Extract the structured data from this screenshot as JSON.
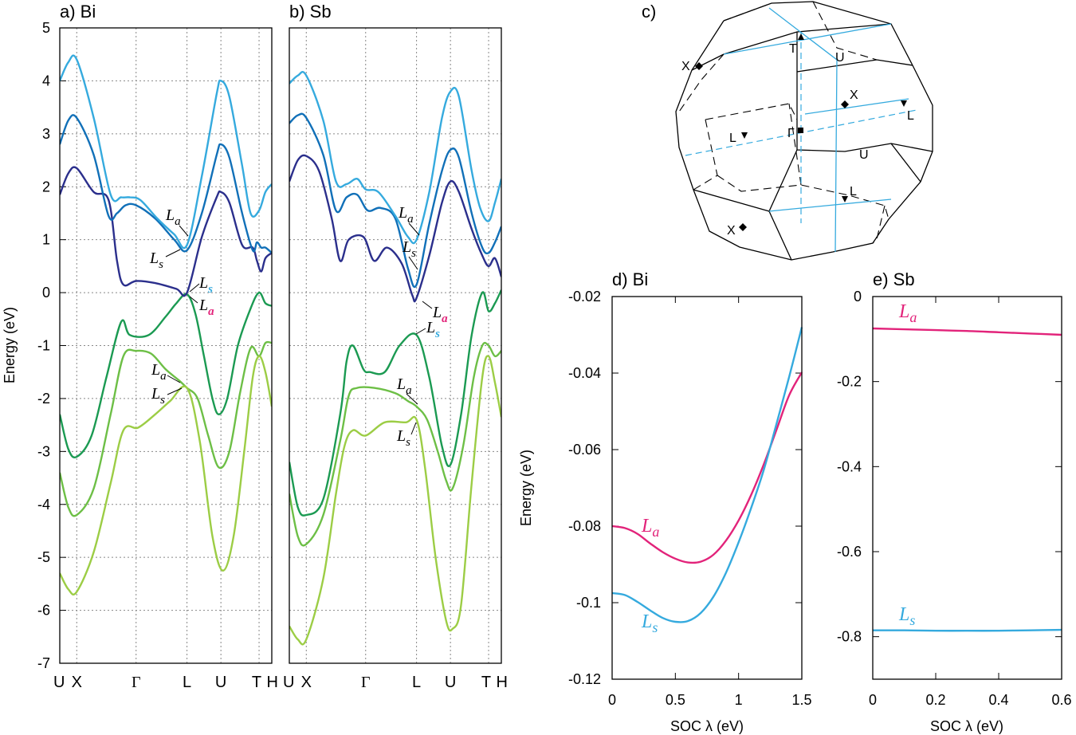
{
  "colors": {
    "band1": "#1b9a52",
    "band2": "#6dbf46",
    "band3": "#9ccd45",
    "band4": "#2b2f8c",
    "band5": "#1170b8",
    "band6": "#35aade",
    "La": "#e2237a",
    "Ls": "#35aade"
  },
  "chart_data": [
    {
      "panel": "a",
      "title": "a) Bi",
      "type": "line",
      "ylabel": "Energy (eV)",
      "ylim": [
        -7,
        5
      ],
      "yticks": [
        "5",
        "4",
        "3",
        "2",
        "1",
        "0",
        "-1",
        "-2",
        "-3",
        "-4",
        "-5",
        "-6",
        "-7"
      ],
      "kpoints": [
        "U",
        "X",
        "Γ",
        "L",
        "U",
        "T",
        "H"
      ],
      "k": [
        0.0,
        0.08,
        0.36,
        0.6,
        0.76,
        0.94,
        1.0
      ],
      "series": [
        {
          "name": "band1",
          "x": [
            0,
            0.04,
            0.08,
            0.15,
            0.22,
            0.29,
            0.33,
            0.42,
            0.5,
            0.55,
            0.6,
            0.64,
            0.68,
            0.72,
            0.75,
            0.79,
            0.84,
            0.9,
            0.94,
            0.97,
            1.0
          ],
          "y": [
            -2.3,
            -2.95,
            -3.1,
            -2.7,
            -1.6,
            -0.55,
            -0.8,
            -0.8,
            -0.45,
            -0.2,
            -0.03,
            -0.4,
            -1.2,
            -2.0,
            -2.3,
            -2.0,
            -1.0,
            -0.3,
            0.0,
            -0.2,
            -0.25
          ]
        },
        {
          "name": "band2",
          "x": [
            0,
            0.04,
            0.08,
            0.16,
            0.24,
            0.3,
            0.36,
            0.43,
            0.5,
            0.56,
            0.6,
            0.65,
            0.7,
            0.75,
            0.8,
            0.85,
            0.9,
            0.94,
            0.97,
            1.0
          ],
          "y": [
            -3.4,
            -4.05,
            -4.2,
            -3.7,
            -2.3,
            -1.2,
            -1.1,
            -1.15,
            -1.45,
            -1.65,
            -1.8,
            -2.0,
            -2.7,
            -3.3,
            -3.0,
            -1.9,
            -1.05,
            -1.2,
            -0.95,
            -0.95
          ]
        },
        {
          "name": "band3",
          "x": [
            0,
            0.04,
            0.08,
            0.16,
            0.24,
            0.3,
            0.37,
            0.45,
            0.52,
            0.6,
            0.66,
            0.72,
            0.77,
            0.82,
            0.87,
            0.91,
            0.94,
            0.97,
            1.0
          ],
          "y": [
            -5.3,
            -5.6,
            -5.65,
            -4.9,
            -3.6,
            -2.6,
            -2.55,
            -2.3,
            -2.05,
            -1.8,
            -2.8,
            -4.6,
            -5.25,
            -4.6,
            -3.0,
            -1.6,
            -1.2,
            -1.5,
            -2.15
          ]
        },
        {
          "name": "band4",
          "x": [
            0,
            0.04,
            0.08,
            0.16,
            0.23,
            0.27,
            0.3,
            0.36,
            0.45,
            0.55,
            0.6,
            0.67,
            0.74,
            0.76,
            0.8,
            0.86,
            0.91,
            0.93,
            0.95,
            0.97,
            1.0
          ],
          "y": [
            1.85,
            2.25,
            2.35,
            1.9,
            1.75,
            0.6,
            0.15,
            0.22,
            0.18,
            0.07,
            0.0,
            1.05,
            1.8,
            1.9,
            1.7,
            0.9,
            0.85,
            0.6,
            0.4,
            0.65,
            0.75
          ]
        },
        {
          "name": "band5",
          "x": [
            0,
            0.04,
            0.08,
            0.16,
            0.23,
            0.27,
            0.31,
            0.36,
            0.45,
            0.54,
            0.6,
            0.67,
            0.74,
            0.76,
            0.8,
            0.86,
            0.91,
            0.93,
            0.95,
            0.97,
            1.0
          ],
          "y": [
            2.8,
            3.25,
            3.3,
            2.6,
            1.45,
            1.5,
            1.65,
            1.65,
            1.4,
            1.0,
            0.8,
            1.5,
            2.6,
            2.8,
            2.55,
            1.5,
            0.8,
            0.95,
            0.85,
            0.85,
            0.75
          ]
        },
        {
          "name": "band6",
          "x": [
            0,
            0.04,
            0.08,
            0.16,
            0.24,
            0.29,
            0.33,
            0.38,
            0.46,
            0.54,
            0.6,
            0.67,
            0.74,
            0.76,
            0.8,
            0.86,
            0.9,
            0.94,
            0.97,
            1.0
          ],
          "y": [
            4.0,
            4.35,
            4.4,
            3.3,
            1.85,
            1.8,
            1.8,
            1.75,
            1.4,
            1.1,
            0.9,
            2.2,
            3.75,
            4.0,
            3.7,
            2.4,
            1.5,
            1.55,
            1.9,
            2.05
          ]
        }
      ],
      "annotations": [
        {
          "main": "L",
          "sub": "a",
          "color": "#000"
        },
        {
          "main": "L",
          "sub": "s",
          "color": "#000"
        },
        {
          "main": "L",
          "sub": "s",
          "color": "#35aade"
        },
        {
          "main": "L",
          "sub": "a",
          "color": "#e2237a"
        },
        {
          "main": "L",
          "sub": "a",
          "color": "#000"
        },
        {
          "main": "L",
          "sub": "s",
          "color": "#000"
        }
      ]
    },
    {
      "panel": "b",
      "title": "b) Sb",
      "type": "line",
      "ylim": [
        -7,
        5
      ],
      "kpoints": [
        "U",
        "X",
        "Γ",
        "L",
        "U",
        "T",
        "H"
      ],
      "k": [
        0.0,
        0.08,
        0.36,
        0.6,
        0.76,
        0.94,
        1.0
      ],
      "series": [
        {
          "name": "band1",
          "x": [
            0,
            0.04,
            0.08,
            0.16,
            0.24,
            0.27,
            0.3,
            0.35,
            0.38,
            0.45,
            0.52,
            0.6,
            0.66,
            0.72,
            0.76,
            0.81,
            0.86,
            0.91,
            0.94,
            0.97,
            1.0
          ],
          "y": [
            -3.2,
            -4.05,
            -4.2,
            -3.9,
            -2.3,
            -1.3,
            -1.0,
            -1.45,
            -1.5,
            -1.5,
            -1.0,
            -0.8,
            -1.6,
            -2.9,
            -3.25,
            -2.3,
            -0.8,
            0.0,
            -0.35,
            -0.2,
            0.05
          ]
        },
        {
          "name": "band2",
          "x": [
            0,
            0.04,
            0.08,
            0.16,
            0.24,
            0.28,
            0.32,
            0.4,
            0.5,
            0.56,
            0.6,
            0.65,
            0.7,
            0.74,
            0.77,
            0.82,
            0.87,
            0.91,
            0.94,
            0.97,
            1.0
          ],
          "y": [
            -3.8,
            -4.6,
            -4.75,
            -4.2,
            -2.8,
            -1.95,
            -1.8,
            -1.8,
            -1.9,
            -2.05,
            -2.15,
            -2.4,
            -3.0,
            -3.55,
            -3.7,
            -2.9,
            -1.6,
            -1.0,
            -1.0,
            -1.2,
            -1.1
          ]
        },
        {
          "name": "band3",
          "x": [
            0,
            0.04,
            0.08,
            0.16,
            0.22,
            0.26,
            0.3,
            0.36,
            0.45,
            0.55,
            0.6,
            0.64,
            0.69,
            0.74,
            0.77,
            0.81,
            0.86,
            0.91,
            0.94,
            0.97,
            1.0
          ],
          "y": [
            -6.3,
            -6.55,
            -6.55,
            -5.4,
            -3.8,
            -2.9,
            -2.6,
            -2.7,
            -2.45,
            -2.45,
            -2.4,
            -3.3,
            -5.0,
            -6.2,
            -6.35,
            -5.9,
            -3.6,
            -1.6,
            -1.2,
            -1.7,
            -2.35
          ]
        },
        {
          "name": "band4",
          "x": [
            0,
            0.04,
            0.08,
            0.14,
            0.2,
            0.24,
            0.28,
            0.35,
            0.4,
            0.46,
            0.53,
            0.58,
            0.6,
            0.66,
            0.72,
            0.76,
            0.8,
            0.86,
            0.91,
            0.94,
            0.97,
            1.0
          ],
          "y": [
            2.1,
            2.5,
            2.58,
            2.3,
            1.4,
            0.6,
            1.0,
            1.05,
            0.6,
            0.85,
            0.55,
            -0.05,
            -0.1,
            0.7,
            1.7,
            2.1,
            1.9,
            1.2,
            0.7,
            0.5,
            0.65,
            0.3
          ]
        },
        {
          "name": "band5",
          "x": [
            0,
            0.04,
            0.08,
            0.16,
            0.22,
            0.27,
            0.32,
            0.37,
            0.43,
            0.5,
            0.56,
            0.6,
            0.66,
            0.72,
            0.76,
            0.8,
            0.86,
            0.91,
            0.94,
            0.97,
            1.0
          ],
          "y": [
            3.2,
            3.35,
            3.3,
            2.6,
            1.55,
            1.8,
            1.85,
            1.55,
            1.6,
            1.4,
            0.45,
            0.15,
            1.3,
            2.3,
            2.7,
            2.55,
            1.5,
            0.85,
            0.75,
            0.95,
            1.25
          ]
        },
        {
          "name": "band6",
          "x": [
            0,
            0.04,
            0.08,
            0.16,
            0.22,
            0.27,
            0.32,
            0.36,
            0.42,
            0.5,
            0.56,
            0.6,
            0.66,
            0.72,
            0.76,
            0.8,
            0.86,
            0.9,
            0.94,
            0.97,
            1.0
          ],
          "y": [
            3.95,
            4.1,
            4.1,
            3.25,
            2.1,
            2.05,
            2.15,
            1.95,
            1.9,
            1.45,
            1.05,
            1.0,
            1.9,
            3.3,
            3.8,
            3.7,
            2.3,
            1.6,
            1.35,
            1.7,
            2.15
          ]
        }
      ],
      "annotations": [
        {
          "main": "L",
          "sub": "a",
          "color": "#000"
        },
        {
          "main": "L",
          "sub": "s",
          "color": "#000"
        },
        {
          "main": "L",
          "sub": "a",
          "color": "#e2237a"
        },
        {
          "main": "L",
          "sub": "s",
          "color": "#35aade"
        },
        {
          "main": "L",
          "sub": "a",
          "color": "#000"
        },
        {
          "main": "L",
          "sub": "s",
          "color": "#000"
        }
      ]
    },
    {
      "panel": "d",
      "title": "d) Bi",
      "type": "line",
      "xlabel": "SOC λ (eV)",
      "ylabel": "Energy (eV)",
      "xlim": [
        0,
        1.5
      ],
      "ylim": [
        -0.12,
        -0.02
      ],
      "xticks": [
        "0",
        "0.5",
        "1",
        "1.5"
      ],
      "yticks": [
        "-0.02",
        "-0.04",
        "-0.06",
        "-0.08",
        "-0.1",
        "-0.12"
      ],
      "series": [
        {
          "name": "La",
          "label_main": "L",
          "label_sub": "a",
          "x": [
            0,
            0.1,
            0.2,
            0.3,
            0.4,
            0.5,
            0.6,
            0.7,
            0.8,
            0.9,
            1.0,
            1.1,
            1.2,
            1.3,
            1.4,
            1.5
          ],
          "y": [
            -0.08,
            -0.0805,
            -0.082,
            -0.0845,
            -0.0868,
            -0.0885,
            -0.0895,
            -0.0893,
            -0.0875,
            -0.0838,
            -0.0785,
            -0.0718,
            -0.0638,
            -0.0548,
            -0.0458,
            -0.0398
          ]
        },
        {
          "name": "Ls",
          "label_main": "L",
          "label_sub": "s",
          "x": [
            0,
            0.1,
            0.2,
            0.3,
            0.4,
            0.5,
            0.6,
            0.7,
            0.8,
            0.9,
            1.0,
            1.1,
            1.2,
            1.3,
            1.4,
            1.5
          ],
          "y": [
            -0.0975,
            -0.098,
            -0.0998,
            -0.102,
            -0.104,
            -0.105,
            -0.1048,
            -0.1027,
            -0.0985,
            -0.0922,
            -0.0842,
            -0.0752,
            -0.0652,
            -0.0532,
            -0.041,
            -0.028
          ]
        }
      ]
    },
    {
      "panel": "e",
      "title": "e) Sb",
      "type": "line",
      "xlabel": "SOC λ (eV)",
      "xlim": [
        0,
        0.6
      ],
      "ylim": [
        -0.9,
        0
      ],
      "xticks": [
        "0",
        "0.2",
        "0.4",
        "0.6"
      ],
      "yticks": [
        "0",
        "-0.2",
        "-0.4",
        "-0.6",
        "-0.8"
      ],
      "series": [
        {
          "name": "La",
          "label_main": "L",
          "label_sub": "a",
          "x": [
            0,
            0.1,
            0.2,
            0.3,
            0.4,
            0.5,
            0.6
          ],
          "y": [
            -0.075,
            -0.077,
            -0.079,
            -0.081,
            -0.084,
            -0.087,
            -0.09
          ]
        },
        {
          "name": "Ls",
          "label_main": "L",
          "label_sub": "s",
          "x": [
            0,
            0.1,
            0.2,
            0.3,
            0.4,
            0.5,
            0.6
          ],
          "y": [
            -0.785,
            -0.785,
            -0.786,
            -0.786,
            -0.786,
            -0.785,
            -0.784
          ]
        }
      ]
    }
  ],
  "bz": {
    "title": "c)",
    "labels": [
      "T",
      "U",
      "X",
      "L",
      "Γ",
      "U",
      "L",
      "L",
      "X",
      "X"
    ]
  }
}
